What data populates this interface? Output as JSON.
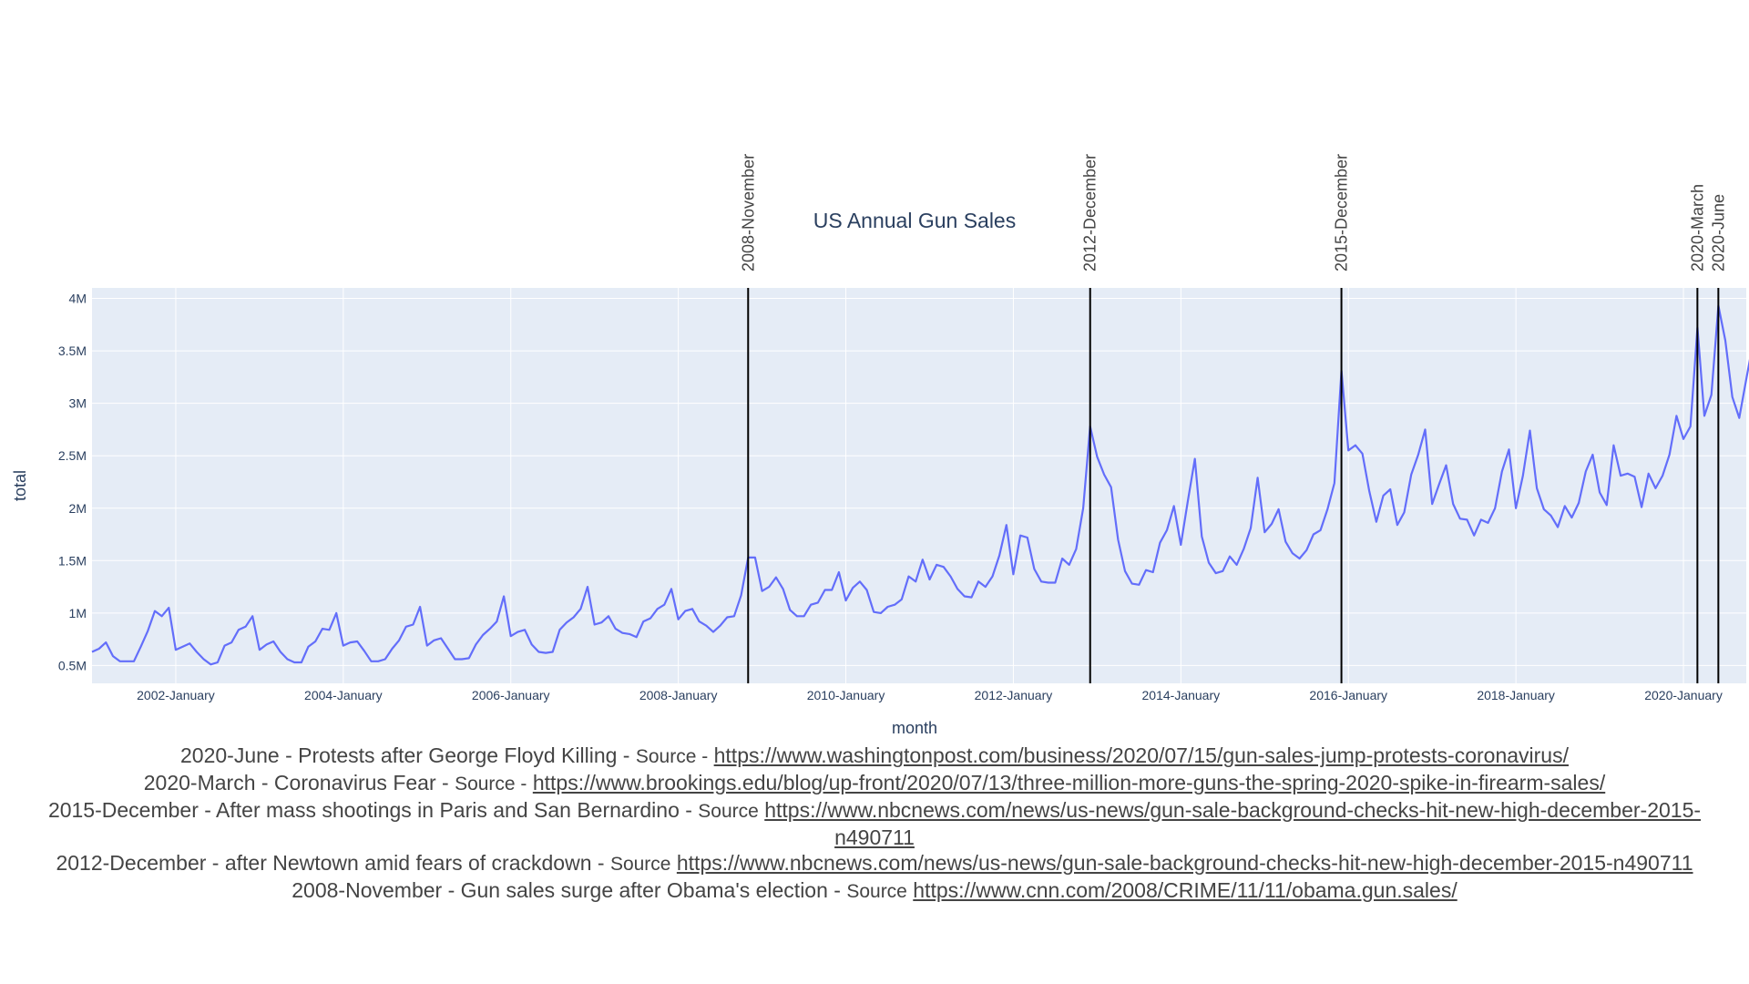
{
  "chart_data": {
    "type": "line",
    "title": "US Annual Gun Sales",
    "xlabel": "month",
    "ylabel": "total",
    "grid": true,
    "legend": "none",
    "x_start": "2001-01",
    "x_end": "2020-10",
    "x_ticks": [
      "2002-January",
      "2004-January",
      "2006-January",
      "2008-January",
      "2010-January",
      "2012-January",
      "2014-January",
      "2016-January",
      "2018-January",
      "2020-January"
    ],
    "y_ticks": [
      "0.5M",
      "1M",
      "1.5M",
      "2M",
      "2.5M",
      "3M",
      "3.5M",
      "4M"
    ],
    "ylim": [
      330000,
      4100000
    ],
    "series": [
      {
        "color": "#636efa",
        "values": [
          630000,
          660000,
          720000,
          590000,
          540000,
          540000,
          540000,
          680000,
          830000,
          1020000,
          970000,
          1050000,
          650000,
          680000,
          710000,
          630000,
          560000,
          510000,
          530000,
          690000,
          720000,
          840000,
          870000,
          970000,
          650000,
          700000,
          730000,
          630000,
          560000,
          530000,
          530000,
          680000,
          730000,
          850000,
          840000,
          1000000,
          690000,
          720000,
          730000,
          640000,
          540000,
          540000,
          560000,
          660000,
          740000,
          870000,
          890000,
          1060000,
          690000,
          740000,
          760000,
          660000,
          560000,
          560000,
          570000,
          700000,
          790000,
          850000,
          920000,
          1160000,
          780000,
          820000,
          840000,
          700000,
          630000,
          620000,
          630000,
          840000,
          910000,
          960000,
          1040000,
          1250000,
          890000,
          910000,
          970000,
          850000,
          810000,
          800000,
          770000,
          920000,
          950000,
          1040000,
          1080000,
          1230000,
          940000,
          1020000,
          1040000,
          920000,
          880000,
          820000,
          880000,
          960000,
          970000,
          1170000,
          1530000,
          1530000,
          1210000,
          1250000,
          1340000,
          1230000,
          1030000,
          970000,
          970000,
          1080000,
          1100000,
          1220000,
          1220000,
          1390000,
          1120000,
          1240000,
          1300000,
          1220000,
          1010000,
          1000000,
          1060000,
          1080000,
          1130000,
          1350000,
          1300000,
          1510000,
          1320000,
          1460000,
          1440000,
          1350000,
          1230000,
          1160000,
          1150000,
          1300000,
          1250000,
          1350000,
          1550000,
          1840000,
          1370000,
          1740000,
          1720000,
          1420000,
          1300000,
          1290000,
          1290000,
          1520000,
          1460000,
          1610000,
          2000000,
          2780000,
          2490000,
          2320000,
          2200000,
          1700000,
          1400000,
          1280000,
          1270000,
          1410000,
          1390000,
          1670000,
          1790000,
          2020000,
          1650000,
          2070000,
          2470000,
          1730000,
          1480000,
          1380000,
          1400000,
          1540000,
          1460000,
          1610000,
          1810000,
          2290000,
          1770000,
          1850000,
          1990000,
          1680000,
          1570000,
          1520000,
          1600000,
          1750000,
          1790000,
          1990000,
          2240000,
          3310000,
          2550000,
          2600000,
          2520000,
          2160000,
          1870000,
          2120000,
          2180000,
          1840000,
          1960000,
          2320000,
          2510000,
          2750000,
          2040000,
          2230000,
          2410000,
          2040000,
          1900000,
          1890000,
          1740000,
          1890000,
          1860000,
          2000000,
          2350000,
          2560000,
          2000000,
          2310000,
          2740000,
          2190000,
          1990000,
          1930000,
          1820000,
          2020000,
          1910000,
          2050000,
          2350000,
          2510000,
          2150000,
          2030000,
          2600000,
          2310000,
          2330000,
          2300000,
          2010000,
          2330000,
          2190000,
          2310000,
          2510000,
          2880000,
          2660000,
          2780000,
          3720000,
          2880000,
          3080000,
          3930000,
          3600000,
          3060000,
          2860000,
          3230000,
          3590000
        ]
      }
    ],
    "events": [
      {
        "label": "2008-November",
        "month": "2008-11"
      },
      {
        "label": "2012-December",
        "month": "2012-12"
      },
      {
        "label": "2015-December",
        "month": "2015-12"
      },
      {
        "label": "2020-March",
        "month": "2020-03"
      },
      {
        "label": "2020-June",
        "month": "2020-06"
      }
    ]
  },
  "colors": {
    "plot_bg": "#e5ecf6",
    "grid": "#ffffff",
    "line": "#636efa",
    "text": "#2a3f5f",
    "event_line": "#000000"
  },
  "notes": [
    {
      "text": "2020-June - Protests after George Floyd Killing - ",
      "source": "Source -",
      "url": "https://www.washingtonpost.com/business/2020/07/15/gun-sales-jump-protests-coronavirus/"
    },
    {
      "text": "2020-March - Coronavirus Fear - ",
      "source": "Source -",
      "url": "https://www.brookings.edu/blog/up-front/2020/07/13/three-million-more-guns-the-spring-2020-spike-in-firearm-sales/"
    },
    {
      "text": "2015-December - After mass shootings in Paris and San Bernardino - ",
      "source": "Source",
      "url": "https://www.nbcnews.com/news/us-news/gun-sale-background-checks-hit-new-high-december-2015-n490711"
    },
    {
      "text": "2012-December - after Newtown amid fears of crackdown - ",
      "source": "Source",
      "url": "https://www.nbcnews.com/news/us-news/gun-sale-background-checks-hit-new-high-december-2015-n490711"
    },
    {
      "text": "2008-November - Gun sales surge after Obama's election - ",
      "source": "Source",
      "url": "https://www.cnn.com/2008/CRIME/11/11/obama.gun.sales/"
    }
  ]
}
